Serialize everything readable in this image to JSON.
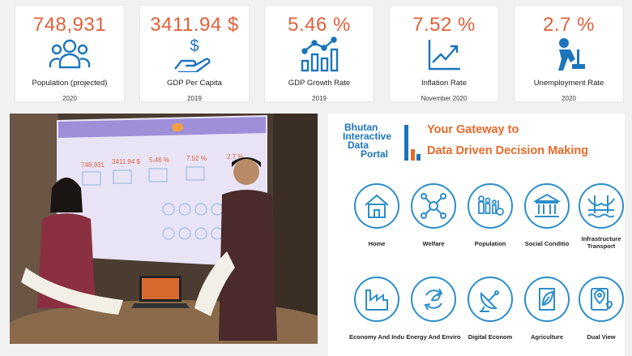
{
  "kpis": [
    {
      "value": "748,931",
      "label": "Population (projected)",
      "date": "2020",
      "icon": "people-icon"
    },
    {
      "value": "3411.94 $",
      "label": "GDP Per Capita",
      "date": "2019",
      "icon": "hand-dollar-icon"
    },
    {
      "value": "5.46 %",
      "label": "GDP Growth Rate",
      "date": "2019",
      "icon": "growth-chart-icon"
    },
    {
      "value": "7.52 %",
      "label": "Inflation Rate",
      "date": "November 2020",
      "icon": "trend-up-icon"
    },
    {
      "value": "2.7 %",
      "label": "Unemployment Rate",
      "date": "2020",
      "icon": "worker-icon"
    }
  ],
  "portal": {
    "brand_line1": "Bhutan",
    "brand_line2": "Interactive",
    "brand_line3": "Data",
    "brand_line4": "Portal",
    "tagline1": "Your Gateway to",
    "tagline2": "Data Driven Decision Making",
    "categories": [
      {
        "label": "Home",
        "icon": "house-icon"
      },
      {
        "label": "Welfare",
        "icon": "network-people-icon"
      },
      {
        "label": "Population",
        "icon": "family-icon"
      },
      {
        "label": "Social Conditio",
        "icon": "building-columns-icon"
      },
      {
        "label": "Infrastructure",
        "label2": "Transport",
        "icon": "bridge-icon"
      },
      {
        "label": "Economy And Indu",
        "icon": "factory-icon"
      },
      {
        "label": "Energy And Enviro",
        "icon": "recycle-icon"
      },
      {
        "label": "Digital Econom",
        "icon": "satellite-dish-icon"
      },
      {
        "label": "Agriculture",
        "icon": "leaf-icon"
      },
      {
        "label": "Dual View",
        "icon": "map-pin-icon"
      }
    ]
  },
  "photo": {
    "screen_kpi1": "748,931",
    "screen_kpi2": "3411.94 $",
    "screen_kpi3": "5.46 %",
    "screen_kpi4": "7.52 %",
    "screen_kpi5": "2.7 %"
  },
  "colors": {
    "accent_orange": "#e0603a",
    "accent_blue": "#1c75bc"
  }
}
